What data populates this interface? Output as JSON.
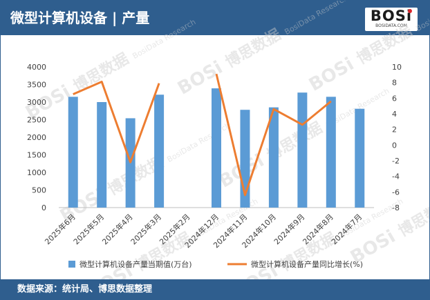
{
  "header": {
    "title": "微型计算机设备 | 产量",
    "logo_text": "BOSi",
    "logo_sub": "BOSIDATA.COM"
  },
  "footer": {
    "source": "数据来源：统计局、博思数据整理"
  },
  "watermark": {
    "cn": "博思数据",
    "en": "BosiData Research"
  },
  "colors": {
    "frame": "#2f5e8e",
    "bar": "#5b9bd5",
    "line": "#ed7d31",
    "logo_dot": "#d9262c"
  },
  "chart_data": {
    "type": "bar+line",
    "categories": [
      "2025年6月",
      "2025年5月",
      "2025年4月",
      "2025年3月",
      "2025年2月",
      "2024年12月",
      "2024年11月",
      "2024年10月",
      "2024年9月",
      "2024年8月",
      "2024年7月"
    ],
    "series": [
      {
        "name": "微型计算机设备产量当期值(万台)",
        "type": "bar",
        "axis": "left",
        "values": [
          3150,
          3000,
          2540,
          3210,
          null,
          3390,
          2780,
          2850,
          3270,
          3150,
          2810
        ]
      },
      {
        "name": "微型计算机设备产量同比增长(%)",
        "type": "line",
        "axis": "right",
        "values": [
          6.5,
          8.1,
          -2.2,
          7.9,
          null,
          9.1,
          -6.4,
          4.6,
          2.6,
          5.6,
          null
        ]
      }
    ],
    "y_left": {
      "min": 0,
      "max": 4000,
      "ticks": [
        0,
        500,
        1000,
        1500,
        2000,
        2500,
        3000,
        3500,
        4000
      ]
    },
    "y_right": {
      "min": -8,
      "max": 10,
      "ticks": [
        -8,
        -6,
        -4,
        -2,
        0,
        2,
        4,
        6,
        8,
        10
      ]
    },
    "grid": false,
    "legend_position": "bottom"
  }
}
